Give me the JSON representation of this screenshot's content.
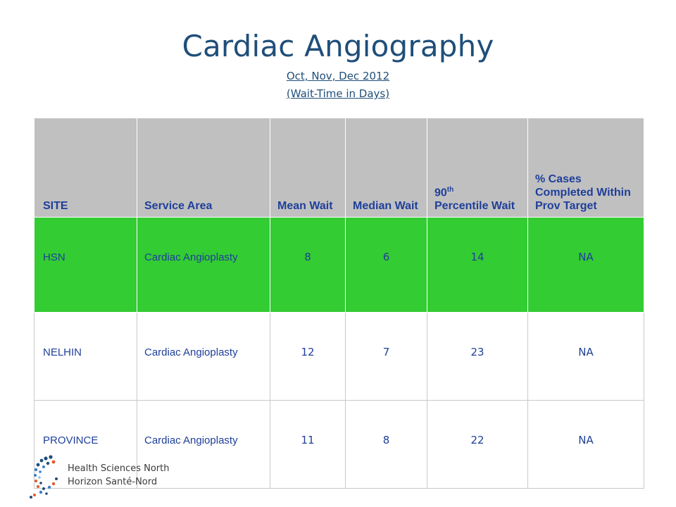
{
  "title": "Cardiac Angiography",
  "subtitle_period": "Oct, Nov, Dec 2012",
  "subtitle_unit": "(Wait-Time in Days)",
  "table": {
    "headers": {
      "site": "SITE",
      "service_area": "Service Area",
      "mean_wait": "Mean Wait",
      "median_wait": "Median Wait",
      "p90_prefix": "90",
      "p90_sup": "th",
      "p90_rest": "Percentile Wait",
      "pct_cases": "% Cases Completed Within Prov Target"
    },
    "rows": [
      {
        "site": "HSN",
        "service_area": "Cardiac Angioplasty",
        "mean": "8",
        "median": "6",
        "p90": "14",
        "pct": "NA"
      },
      {
        "site": "NELHIN",
        "service_area": "Cardiac Angioplasty",
        "mean": "12",
        "median": "7",
        "p90": "23",
        "pct": "NA"
      },
      {
        "site": "PROVINCE",
        "service_area": "Cardiac Angioplasty",
        "mean": "11",
        "median": "8",
        "p90": "22",
        "pct": "NA"
      }
    ]
  },
  "logo": {
    "line1": "Health Sciences North",
    "line2": "Horizon Santé-Nord"
  },
  "colors": {
    "title": "#1f4e79",
    "header_bg": "#c0c0c0",
    "highlight_row": "#33cc33",
    "text": "#1f3f9a"
  }
}
